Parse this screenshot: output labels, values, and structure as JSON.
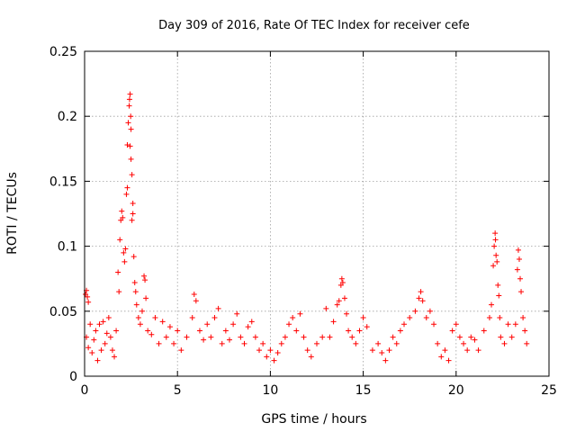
{
  "chart_data": {
    "type": "scatter",
    "title": "Day 309 of 2016, Rate Of TEC Index for receiver cefe",
    "xlabel": "GPS time / hours",
    "ylabel": "ROTI / TECUs",
    "xlim": [
      0,
      25
    ],
    "ylim": [
      0,
      0.25
    ],
    "x_ticks": [
      0,
      5,
      10,
      15,
      20,
      25
    ],
    "x_tick_labels": [
      "0",
      "5",
      "10",
      "15",
      "20",
      "25"
    ],
    "y_ticks": [
      0,
      0.05,
      0.1,
      0.15,
      0.2,
      0.25
    ],
    "y_tick_labels": [
      "0",
      "0.05",
      "0.1",
      "0.15",
      "0.2",
      "0.25"
    ],
    "grid": true,
    "marker": "+",
    "color": "#ff0000",
    "series": [
      {
        "name": "ROTI",
        "points": [
          [
            0.05,
            0.063
          ],
          [
            0.1,
            0.066
          ],
          [
            0.15,
            0.061
          ],
          [
            0.2,
            0.057
          ],
          [
            0.1,
            0.03
          ],
          [
            0.2,
            0.022
          ],
          [
            0.3,
            0.04
          ],
          [
            0.4,
            0.018
          ],
          [
            0.5,
            0.028
          ],
          [
            0.6,
            0.035
          ],
          [
            0.7,
            0.012
          ],
          [
            0.8,
            0.04
          ],
          [
            0.9,
            0.02
          ],
          [
            1.0,
            0.042
          ],
          [
            1.1,
            0.025
          ],
          [
            1.2,
            0.033
          ],
          [
            1.3,
            0.045
          ],
          [
            1.4,
            0.03
          ],
          [
            1.5,
            0.02
          ],
          [
            1.6,
            0.015
          ],
          [
            1.7,
            0.035
          ],
          [
            1.8,
            0.08
          ],
          [
            1.85,
            0.065
          ],
          [
            1.9,
            0.105
          ],
          [
            1.95,
            0.12
          ],
          [
            2.0,
            0.127
          ],
          [
            2.05,
            0.122
          ],
          [
            2.1,
            0.095
          ],
          [
            2.15,
            0.088
          ],
          [
            2.2,
            0.098
          ],
          [
            2.25,
            0.14
          ],
          [
            2.3,
            0.145
          ],
          [
            2.3,
            0.178
          ],
          [
            2.35,
            0.195
          ],
          [
            2.4,
            0.208
          ],
          [
            2.42,
            0.213
          ],
          [
            2.45,
            0.217
          ],
          [
            2.48,
            0.2
          ],
          [
            2.5,
            0.19
          ],
          [
            2.45,
            0.177
          ],
          [
            2.5,
            0.167
          ],
          [
            2.55,
            0.155
          ],
          [
            2.6,
            0.133
          ],
          [
            2.6,
            0.125
          ],
          [
            2.55,
            0.12
          ],
          [
            2.65,
            0.092
          ],
          [
            2.7,
            0.072
          ],
          [
            2.75,
            0.065
          ],
          [
            2.8,
            0.055
          ],
          [
            2.9,
            0.045
          ],
          [
            3.0,
            0.04
          ],
          [
            3.1,
            0.05
          ],
          [
            3.2,
            0.077
          ],
          [
            3.25,
            0.074
          ],
          [
            3.3,
            0.06
          ],
          [
            3.4,
            0.035
          ],
          [
            3.6,
            0.032
          ],
          [
            3.8,
            0.045
          ],
          [
            4.0,
            0.025
          ],
          [
            4.2,
            0.042
          ],
          [
            4.4,
            0.03
          ],
          [
            4.6,
            0.038
          ],
          [
            4.8,
            0.025
          ],
          [
            5.0,
            0.035
          ],
          [
            5.2,
            0.02
          ],
          [
            5.5,
            0.03
          ],
          [
            5.8,
            0.045
          ],
          [
            5.9,
            0.063
          ],
          [
            6.0,
            0.058
          ],
          [
            6.2,
            0.035
          ],
          [
            6.4,
            0.028
          ],
          [
            6.6,
            0.04
          ],
          [
            6.8,
            0.03
          ],
          [
            7.0,
            0.045
          ],
          [
            7.2,
            0.052
          ],
          [
            7.4,
            0.025
          ],
          [
            7.6,
            0.035
          ],
          [
            7.8,
            0.028
          ],
          [
            8.0,
            0.04
          ],
          [
            8.2,
            0.048
          ],
          [
            8.4,
            0.03
          ],
          [
            8.6,
            0.025
          ],
          [
            8.8,
            0.038
          ],
          [
            9.0,
            0.042
          ],
          [
            9.2,
            0.03
          ],
          [
            9.4,
            0.02
          ],
          [
            9.6,
            0.025
          ],
          [
            9.8,
            0.015
          ],
          [
            10.0,
            0.02
          ],
          [
            10.2,
            0.012
          ],
          [
            10.4,
            0.018
          ],
          [
            10.6,
            0.025
          ],
          [
            10.8,
            0.03
          ],
          [
            11.0,
            0.04
          ],
          [
            11.2,
            0.045
          ],
          [
            11.4,
            0.035
          ],
          [
            11.6,
            0.048
          ],
          [
            11.8,
            0.03
          ],
          [
            12.0,
            0.02
          ],
          [
            12.2,
            0.015
          ],
          [
            12.5,
            0.025
          ],
          [
            12.8,
            0.03
          ],
          [
            13.0,
            0.052
          ],
          [
            13.2,
            0.03
          ],
          [
            13.4,
            0.042
          ],
          [
            13.6,
            0.055
          ],
          [
            13.7,
            0.058
          ],
          [
            13.8,
            0.07
          ],
          [
            13.85,
            0.075
          ],
          [
            13.9,
            0.072
          ],
          [
            14.0,
            0.06
          ],
          [
            14.1,
            0.048
          ],
          [
            14.2,
            0.035
          ],
          [
            14.4,
            0.03
          ],
          [
            14.6,
            0.025
          ],
          [
            14.8,
            0.035
          ],
          [
            15.0,
            0.045
          ],
          [
            15.2,
            0.038
          ],
          [
            15.5,
            0.02
          ],
          [
            15.8,
            0.025
          ],
          [
            16.0,
            0.018
          ],
          [
            16.2,
            0.012
          ],
          [
            16.4,
            0.02
          ],
          [
            16.6,
            0.03
          ],
          [
            16.8,
            0.025
          ],
          [
            17.0,
            0.035
          ],
          [
            17.2,
            0.04
          ],
          [
            17.5,
            0.045
          ],
          [
            17.8,
            0.05
          ],
          [
            18.0,
            0.06
          ],
          [
            18.1,
            0.065
          ],
          [
            18.2,
            0.058
          ],
          [
            18.4,
            0.045
          ],
          [
            18.6,
            0.05
          ],
          [
            18.8,
            0.04
          ],
          [
            19.0,
            0.025
          ],
          [
            19.2,
            0.015
          ],
          [
            19.4,
            0.02
          ],
          [
            19.6,
            0.012
          ],
          [
            19.8,
            0.035
          ],
          [
            20.0,
            0.04
          ],
          [
            20.2,
            0.03
          ],
          [
            20.4,
            0.025
          ],
          [
            20.6,
            0.02
          ],
          [
            20.8,
            0.03
          ],
          [
            21.0,
            0.028
          ],
          [
            21.2,
            0.02
          ],
          [
            21.5,
            0.035
          ],
          [
            21.8,
            0.045
          ],
          [
            21.9,
            0.055
          ],
          [
            22.0,
            0.085
          ],
          [
            22.05,
            0.1
          ],
          [
            22.1,
            0.11
          ],
          [
            22.12,
            0.105
          ],
          [
            22.15,
            0.093
          ],
          [
            22.2,
            0.088
          ],
          [
            22.25,
            0.07
          ],
          [
            22.3,
            0.062
          ],
          [
            22.35,
            0.045
          ],
          [
            22.4,
            0.03
          ],
          [
            22.6,
            0.025
          ],
          [
            22.8,
            0.04
          ],
          [
            23.0,
            0.03
          ],
          [
            23.2,
            0.04
          ],
          [
            23.3,
            0.082
          ],
          [
            23.35,
            0.097
          ],
          [
            23.4,
            0.09
          ],
          [
            23.45,
            0.075
          ],
          [
            23.5,
            0.065
          ],
          [
            23.6,
            0.045
          ],
          [
            23.7,
            0.035
          ],
          [
            23.8,
            0.025
          ]
        ]
      }
    ]
  }
}
